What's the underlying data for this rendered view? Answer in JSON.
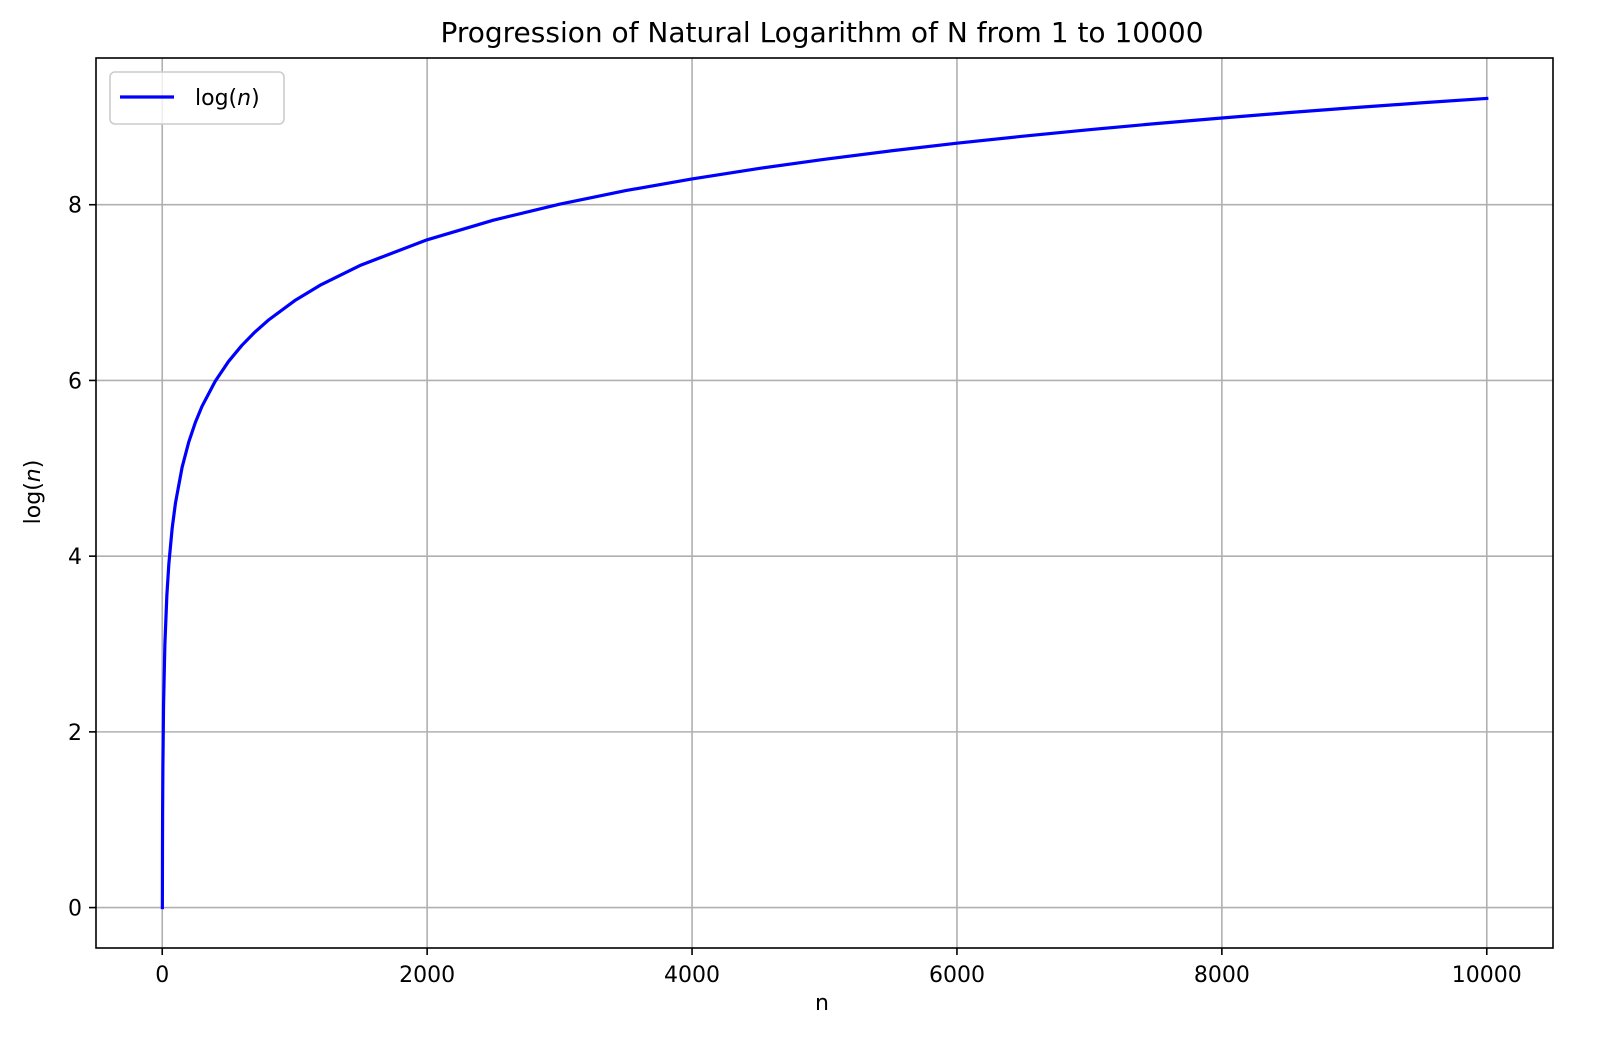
{
  "chart_data": {
    "type": "line",
    "title": "Progression of Natural Logarithm of N from 1 to 10000",
    "xlabel": "n",
    "ylabel_prefix": "log(",
    "ylabel_var": "n",
    "ylabel_suffix": ")",
    "xlim": [
      -500,
      10500
    ],
    "ylim": [
      -0.46,
      9.67
    ],
    "x_ticks": [
      0,
      2000,
      4000,
      6000,
      8000,
      10000
    ],
    "x_tick_labels": [
      "0",
      "2000",
      "4000",
      "6000",
      "8000",
      "10000"
    ],
    "y_ticks": [
      0,
      2,
      4,
      6,
      8
    ],
    "y_tick_labels": [
      "0",
      "2",
      "4",
      "6",
      "8"
    ],
    "grid": true,
    "legend_position": "top-left",
    "series": [
      {
        "legend_prefix": "log(",
        "legend_var": "n",
        "legend_suffix": ")",
        "color": "#0000ff",
        "x": [
          1,
          2,
          3,
          5,
          10,
          20,
          35,
          50,
          75,
          100,
          150,
          200,
          250,
          300,
          400,
          500,
          600,
          700,
          800,
          1000,
          1200,
          1500,
          2000,
          2500,
          3000,
          3500,
          4000,
          4500,
          5000,
          5500,
          6000,
          6500,
          7000,
          7500,
          8000,
          8500,
          9000,
          9500,
          10000
        ],
        "y": [
          0,
          0.693,
          1.099,
          1.609,
          2.303,
          2.996,
          3.555,
          3.912,
          4.317,
          4.605,
          5.011,
          5.298,
          5.521,
          5.704,
          5.991,
          6.215,
          6.397,
          6.551,
          6.685,
          6.908,
          7.09,
          7.313,
          7.601,
          7.824,
          8.006,
          8.161,
          8.294,
          8.412,
          8.517,
          8.613,
          8.7,
          8.78,
          8.854,
          8.923,
          8.987,
          9.048,
          9.105,
          9.159,
          9.21
        ]
      }
    ]
  }
}
